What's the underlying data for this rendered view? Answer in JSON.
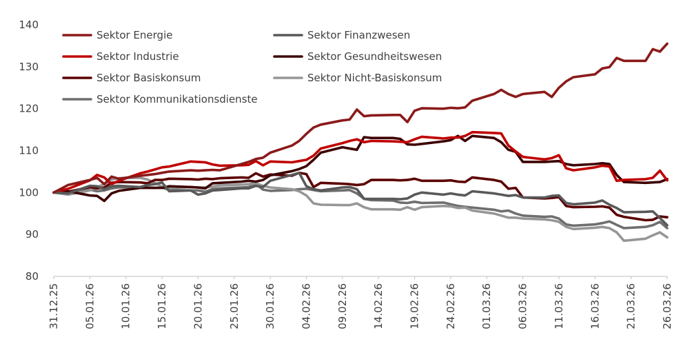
{
  "chart_data": {
    "type": "line",
    "title": "",
    "xlabel": "",
    "ylabel": "",
    "ylim": [
      80,
      140
    ],
    "yticks": [
      80,
      90,
      100,
      110,
      120,
      130,
      140
    ],
    "x_tick_labels": [
      "31.12.25",
      "05.01.26",
      "10.01.26",
      "15.01.26",
      "20.01.26",
      "25.01.26",
      "30.01.26",
      "04.02.26",
      "09.02.26",
      "14.02.26",
      "19.02.26",
      "24.02.26",
      "01.03.26",
      "06.03.26",
      "11.03.26",
      "16.03.26",
      "21.03.26",
      "26.03.26"
    ],
    "x_tick_dates": [
      "2025-12-31",
      "2026-01-05",
      "2026-01-10",
      "2026-01-15",
      "2026-01-20",
      "2026-01-25",
      "2026-01-30",
      "2026-02-04",
      "2026-02-09",
      "2026-02-14",
      "2026-02-19",
      "2026-02-24",
      "2026-03-01",
      "2026-03-06",
      "2026-03-11",
      "2026-03-16",
      "2026-03-21",
      "2026-03-26"
    ],
    "grid": false,
    "legend_position": "top-left",
    "dates": [
      "2025-12-31",
      "2026-01-02",
      "2026-01-05",
      "2026-01-06",
      "2026-01-07",
      "2026-01-08",
      "2026-01-09",
      "2026-01-12",
      "2026-01-13",
      "2026-01-14",
      "2026-01-15",
      "2026-01-16",
      "2026-01-19",
      "2026-01-20",
      "2026-01-21",
      "2026-01-22",
      "2026-01-23",
      "2026-01-26",
      "2026-01-27",
      "2026-01-28",
      "2026-01-29",
      "2026-01-30",
      "2026-02-02",
      "2026-02-03",
      "2026-02-04",
      "2026-02-05",
      "2026-02-06",
      "2026-02-09",
      "2026-02-10",
      "2026-02-11",
      "2026-02-12",
      "2026-02-13",
      "2026-02-16",
      "2026-02-17",
      "2026-02-18",
      "2026-02-19",
      "2026-02-20",
      "2026-02-23",
      "2026-02-24",
      "2026-02-25",
      "2026-02-26",
      "2026-02-27",
      "2026-03-02",
      "2026-03-03",
      "2026-03-04",
      "2026-03-05",
      "2026-03-06",
      "2026-03-09",
      "2026-03-10",
      "2026-03-11",
      "2026-03-12",
      "2026-03-13",
      "2026-03-16",
      "2026-03-17",
      "2026-03-18",
      "2026-03-19",
      "2026-03-20",
      "2026-03-23",
      "2026-03-24",
      "2026-03-25",
      "2026-03-26"
    ],
    "series": [
      {
        "name": "Sektor Energie",
        "color": "#8b1a1a",
        "values": [
          100,
          101.8,
          103,
          103.5,
          102,
          103.8,
          103.3,
          104,
          104.2,
          104.4,
          104.7,
          105,
          105.3,
          105.2,
          105.3,
          105.4,
          105.3,
          106.8,
          107.3,
          108,
          108.3,
          109.5,
          111.2,
          112.3,
          114,
          115.5,
          116.2,
          117.2,
          117.4,
          119.8,
          118.2,
          118.4,
          118.5,
          118.5,
          116.8,
          119.5,
          120.1,
          120,
          120.2,
          120.1,
          120.3,
          121.9,
          123.5,
          124.5,
          123.5,
          122.8,
          123.5,
          124,
          122.8,
          125,
          126.5,
          127.5,
          128.2,
          129.6,
          129.9,
          132.1,
          131.4,
          131.4,
          134.2,
          133.6,
          135.5
        ]
      },
      {
        "name": "Sektor Finanzwesen",
        "color": "#595959",
        "values": [
          100,
          99.8,
          101.6,
          101.5,
          100.8,
          101.5,
          101.6,
          101.3,
          101.8,
          102,
          102.4,
          100.3,
          100.5,
          99.5,
          99.8,
          100.5,
          100.6,
          101,
          101,
          101.6,
          101.3,
          102.8,
          104.2,
          104.7,
          101.5,
          100.8,
          100.5,
          101.2,
          101.3,
          100.8,
          98.5,
          98.5,
          98.5,
          98.4,
          98.6,
          99.5,
          100,
          99.5,
          99.8,
          99.5,
          99.3,
          100.3,
          99.8,
          99.5,
          99.2,
          99.4,
          98.8,
          98.8,
          99.2,
          99.3,
          97.5,
          97.2,
          97.6,
          98.1,
          97.1,
          96.3,
          95.3,
          95.4,
          95.5,
          93.9,
          92.2
        ]
      },
      {
        "name": "Sektor Industrie",
        "color": "#c00000",
        "values": [
          100,
          100.9,
          102.9,
          104.2,
          103.6,
          102,
          102.8,
          104.6,
          105,
          105.5,
          106,
          106.2,
          107.4,
          107.3,
          107.2,
          106.7,
          106.4,
          106.5,
          106.6,
          107.5,
          106.5,
          107.4,
          107.2,
          107.5,
          107.8,
          108.8,
          110.5,
          111.8,
          112.3,
          112.7,
          112,
          112.3,
          112.2,
          112.1,
          112,
          112.7,
          113.3,
          112.9,
          113.1,
          113.1,
          113.5,
          114.4,
          114.2,
          114.1,
          111.2,
          109.8,
          108.5,
          107.9,
          108.2,
          108.9,
          105.8,
          105.3,
          106,
          106.4,
          106.2,
          102.8,
          103,
          103.2,
          103.5,
          105.2,
          102.9
        ]
      },
      {
        "name": "Sektor Gesundheitswesen",
        "color": "#3d0000",
        "values": [
          100,
          100.3,
          99.3,
          99.2,
          98,
          99.8,
          100.4,
          101.1,
          101.1,
          101.1,
          101.1,
          101.5,
          101.3,
          101.2,
          101,
          102.2,
          102.3,
          102.6,
          102.8,
          102.6,
          103,
          104.1,
          105.1,
          105.6,
          106.3,
          107.8,
          109.5,
          110.8,
          110.5,
          110.2,
          113.2,
          113,
          113,
          112.8,
          111.5,
          111.4,
          111.6,
          112.2,
          112.5,
          113.5,
          112.3,
          113.5,
          113,
          112,
          110.2,
          109.7,
          107.3,
          107.3,
          107.4,
          107.5,
          106.8,
          106.5,
          106.8,
          107,
          106.8,
          104.2,
          102.5,
          102.3,
          102.4,
          102.5,
          103.2
        ]
      },
      {
        "name": "Sektor Basiskonsum",
        "color": "#5c0000",
        "values": [
          100,
          100.2,
          101.3,
          101,
          101.2,
          102.3,
          102.5,
          102.4,
          102.2,
          103,
          103,
          103.3,
          103.2,
          103.1,
          103.3,
          103.2,
          103.4,
          103.6,
          103.5,
          104.6,
          103.8,
          104.3,
          104,
          104.7,
          104.4,
          101.3,
          102.3,
          102.1,
          102,
          101.8,
          102,
          103,
          103,
          102.9,
          103,
          103.3,
          102.8,
          102.8,
          102.9,
          102.6,
          102.5,
          103.6,
          103,
          102.6,
          100.9,
          101.1,
          98.8,
          98.6,
          98.7,
          98.9,
          96.8,
          96.5,
          96.6,
          96.7,
          96.4,
          94.7,
          94.2,
          93.4,
          93.5,
          94.3,
          94.1
        ]
      },
      {
        "name": "Sektor Nicht-Basiskonsum",
        "color": "#969696",
        "values": [
          100,
          99.5,
          100.5,
          101.3,
          102,
          103.1,
          103.4,
          103.5,
          103.1,
          102.3,
          101.4,
          101.1,
          101.3,
          101.2,
          101.2,
          101.4,
          101.7,
          101.9,
          102,
          102.2,
          101.6,
          101.2,
          100.8,
          100.3,
          99.3,
          97.4,
          97.1,
          97.0,
          97.0,
          97.4,
          96.5,
          96,
          96.0,
          95.9,
          96.5,
          95.9,
          96.5,
          96.8,
          96.7,
          96.3,
          96.4,
          95.7,
          95.0,
          94.5,
          94.0,
          94.0,
          93.8,
          93.6,
          93.4,
          93.0,
          91.8,
          91.3,
          91.6,
          91.8,
          91.5,
          90.5,
          88.5,
          89.0,
          89.8,
          90.5,
          89.3
        ]
      },
      {
        "name": "Sektor Kommunikationsdienste",
        "color": "#6e6e6e",
        "values": [
          100,
          99.7,
          100.7,
          100.3,
          100.5,
          101,
          101.2,
          101.2,
          101.2,
          101.1,
          101.2,
          100.6,
          100.5,
          100.5,
          100.2,
          100.8,
          101,
          101.2,
          101.3,
          102,
          100.7,
          100.4,
          100.6,
          100.8,
          100.9,
          100.6,
          100.3,
          100.5,
          100.6,
          99.8,
          98.5,
          98.2,
          98.1,
          97.6,
          97.5,
          97.8,
          97.5,
          97.6,
          97.2,
          96.8,
          96.6,
          96.4,
          95.9,
          95.5,
          95.7,
          95.0,
          94.5,
          94.2,
          94.3,
          93.8,
          92.4,
          92.1,
          92.4,
          92.7,
          93.1,
          92.3,
          91.5,
          91.8,
          92.2,
          93.0,
          91.5
        ]
      }
    ]
  }
}
